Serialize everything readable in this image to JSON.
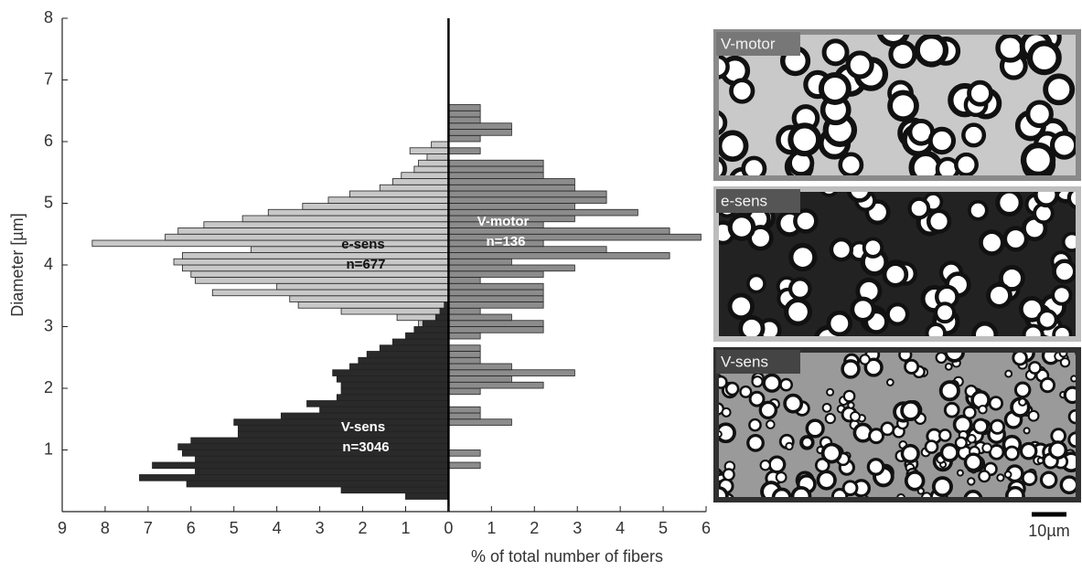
{
  "chart_data": {
    "type": "mirrored-histogram",
    "xlabel": "% of total number of fibers",
    "ylabel": "Diameter [µm]",
    "xlim": [
      -9,
      6
    ],
    "xticks": [
      {
        "value": -9,
        "label": "9"
      },
      {
        "value": -8,
        "label": "8"
      },
      {
        "value": -7,
        "label": "7"
      },
      {
        "value": -6,
        "label": "6"
      },
      {
        "value": -5,
        "label": "5"
      },
      {
        "value": -4,
        "label": "4"
      },
      {
        "value": -3,
        "label": "3"
      },
      {
        "value": -2,
        "label": "2"
      },
      {
        "value": -1,
        "label": "1"
      },
      0,
      1,
      2,
      3,
      4,
      5,
      6
    ],
    "ylim": [
      0,
      8
    ],
    "yticks": [
      1,
      2,
      3,
      4,
      5,
      6,
      7,
      8
    ],
    "bins": [
      0.2,
      0.3,
      0.4,
      0.5,
      0.6,
      0.7,
      0.8,
      0.9,
      1.0,
      1.1,
      1.2,
      1.3,
      1.4,
      1.5,
      1.6,
      1.7,
      1.8,
      1.9,
      2.0,
      2.1,
      2.2,
      2.3,
      2.4,
      2.5,
      2.6,
      2.7,
      2.8,
      2.9,
      3.0,
      3.1,
      3.2,
      3.3,
      3.4,
      3.5,
      3.6,
      3.7,
      3.8,
      3.9,
      4.0,
      4.1,
      4.2,
      4.3,
      4.4,
      4.5,
      4.6,
      4.7,
      4.8,
      4.9,
      5.0,
      5.1,
      5.2,
      5.3,
      5.4,
      5.5,
      5.6,
      5.7,
      5.8,
      5.9,
      6.0,
      6.1,
      6.2,
      6.3,
      6.4,
      6.5,
      6.6,
      6.7,
      6.8,
      6.9,
      7.0
    ],
    "series": [
      {
        "name": "e-sens",
        "direction": "left",
        "color": "#c8c8c8",
        "values": [
          0,
          0,
          0,
          0,
          0,
          0,
          0,
          0,
          0,
          0,
          0,
          0,
          0,
          0,
          0,
          0,
          0,
          0,
          0,
          0,
          0,
          0,
          0,
          0,
          0,
          0,
          0,
          0,
          0.7,
          1.2,
          2.5,
          3.5,
          3.7,
          5.5,
          4.0,
          5.9,
          6.0,
          6.2,
          6.4,
          6.2,
          4.6,
          8.3,
          6.6,
          6.3,
          5.7,
          4.8,
          4.2,
          3.4,
          2.8,
          2.3,
          1.6,
          1.3,
          1.1,
          0.8,
          0.7,
          0.5,
          0.9,
          0.4,
          0,
          0,
          0,
          0,
          0,
          0,
          0,
          0,
          0,
          0
        ]
      },
      {
        "name": "V-sens",
        "direction": "left",
        "color": "#2a2a2a",
        "values": [
          1.0,
          2.5,
          6.1,
          7.2,
          5.9,
          6.9,
          5.9,
          6.2,
          6.3,
          6.0,
          4.9,
          4.9,
          5.0,
          3.9,
          3.0,
          3.3,
          2.6,
          2.5,
          2.5,
          2.6,
          2.7,
          2.3,
          2.1,
          1.9,
          1.6,
          1.3,
          1.0,
          0.8,
          0.6,
          0.3,
          0.2,
          0.1,
          0,
          0,
          0,
          0,
          0,
          0,
          0,
          0,
          0,
          0,
          0,
          0,
          0,
          0,
          0,
          0,
          0,
          0,
          0,
          0,
          0,
          0,
          0,
          0,
          0,
          0,
          0,
          0,
          0,
          0,
          0,
          0,
          0,
          0,
          0,
          0
        ]
      },
      {
        "name": "V-motor",
        "direction": "right",
        "color": "#8c8c8c",
        "values": [
          0,
          0,
          0,
          0,
          0,
          0.74,
          0,
          0.74,
          0,
          0,
          0,
          0,
          1.47,
          0.74,
          0.74,
          0,
          0,
          0.74,
          2.21,
          1.47,
          2.94,
          1.47,
          0.74,
          0.74,
          0.74,
          0,
          0.74,
          2.21,
          2.21,
          1.47,
          0.74,
          2.21,
          2.21,
          2.21,
          2.21,
          0.74,
          2.21,
          2.94,
          1.47,
          5.15,
          3.68,
          2.21,
          5.88,
          5.15,
          2.21,
          2.94,
          4.41,
          2.94,
          3.68,
          3.68,
          2.94,
          2.94,
          2.21,
          2.21,
          2.21,
          0,
          0.74,
          0,
          0.74,
          1.47,
          1.47,
          0.74,
          0.74,
          0.74,
          0,
          0,
          0,
          0
        ]
      }
    ],
    "annotations": [
      {
        "lines": [
          "e-sens",
          "n=677"
        ]
      },
      {
        "lines": [
          "V-motor",
          "n=136"
        ]
      },
      {
        "lines": [
          "V-sens",
          "n=3046"
        ]
      }
    ],
    "panels": [
      {
        "label": "V-motor"
      },
      {
        "label": "e-sens"
      },
      {
        "label": "V-sens"
      }
    ],
    "scale_bar": "10µm"
  }
}
